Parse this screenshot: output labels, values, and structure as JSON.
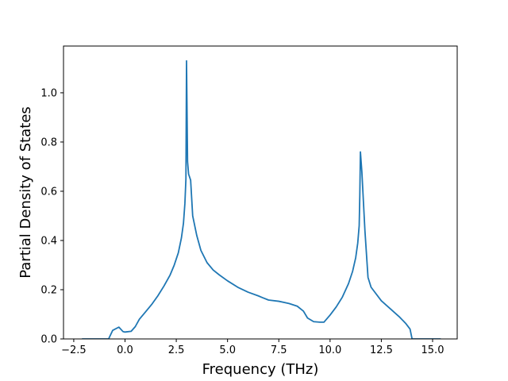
{
  "chart_data": {
    "type": "line",
    "title": "",
    "xlabel": "Frequency (THz)",
    "ylabel": "Partial Density of States",
    "xlim": [
      -3.0,
      16.2
    ],
    "ylim": [
      0.0,
      1.19
    ],
    "x_ticks": [
      -2.5,
      0.0,
      2.5,
      5.0,
      7.5,
      10.0,
      12.5,
      15.0
    ],
    "x_tick_labels": [
      "−2.5",
      "0.0",
      "2.5",
      "5.0",
      "7.5",
      "10.0",
      "12.5",
      "15.0"
    ],
    "y_ticks": [
      0.0,
      0.2,
      0.4,
      0.6,
      0.8,
      1.0
    ],
    "y_tick_labels": [
      "0.0",
      "0.2",
      "0.4",
      "0.6",
      "0.8",
      "1.0"
    ],
    "grid": false,
    "legend": "none",
    "series": [
      {
        "color": "#1f77b4",
        "x": [
          -2.1,
          -1.5,
          -1.0,
          -0.8,
          -0.6,
          -0.3,
          -0.1,
          0.0,
          0.3,
          0.5,
          0.7,
          1.0,
          1.3,
          1.6,
          1.9,
          2.2,
          2.4,
          2.6,
          2.75,
          2.85,
          2.92,
          2.97,
          3.0,
          3.05,
          3.1,
          3.2,
          3.3,
          3.5,
          3.7,
          4.0,
          4.3,
          4.6,
          5.0,
          5.5,
          6.0,
          6.5,
          6.7,
          7.0,
          7.5,
          8.0,
          8.4,
          8.7,
          8.9,
          9.2,
          9.5,
          9.7,
          10.0,
          10.3,
          10.6,
          10.9,
          11.1,
          11.25,
          11.35,
          11.42,
          11.45,
          11.48,
          11.55,
          11.7,
          11.85,
          12.0,
          12.5,
          13.0,
          13.4,
          13.7,
          13.9,
          14.0,
          14.5,
          15.0,
          15.4
        ],
        "y": [
          0.0,
          0.0,
          0.0,
          0.0,
          0.035,
          0.048,
          0.03,
          0.028,
          0.031,
          0.05,
          0.08,
          0.11,
          0.14,
          0.175,
          0.215,
          0.26,
          0.3,
          0.35,
          0.41,
          0.47,
          0.55,
          0.65,
          1.13,
          0.72,
          0.67,
          0.645,
          0.5,
          0.42,
          0.36,
          0.31,
          0.28,
          0.26,
          0.236,
          0.21,
          0.19,
          0.175,
          0.168,
          0.158,
          0.153,
          0.144,
          0.133,
          0.113,
          0.085,
          0.07,
          0.068,
          0.068,
          0.097,
          0.13,
          0.17,
          0.225,
          0.275,
          0.33,
          0.39,
          0.46,
          0.58,
          0.76,
          0.68,
          0.44,
          0.25,
          0.21,
          0.155,
          0.118,
          0.088,
          0.062,
          0.04,
          0.0,
          0.0,
          0.0,
          0.0
        ]
      }
    ]
  }
}
